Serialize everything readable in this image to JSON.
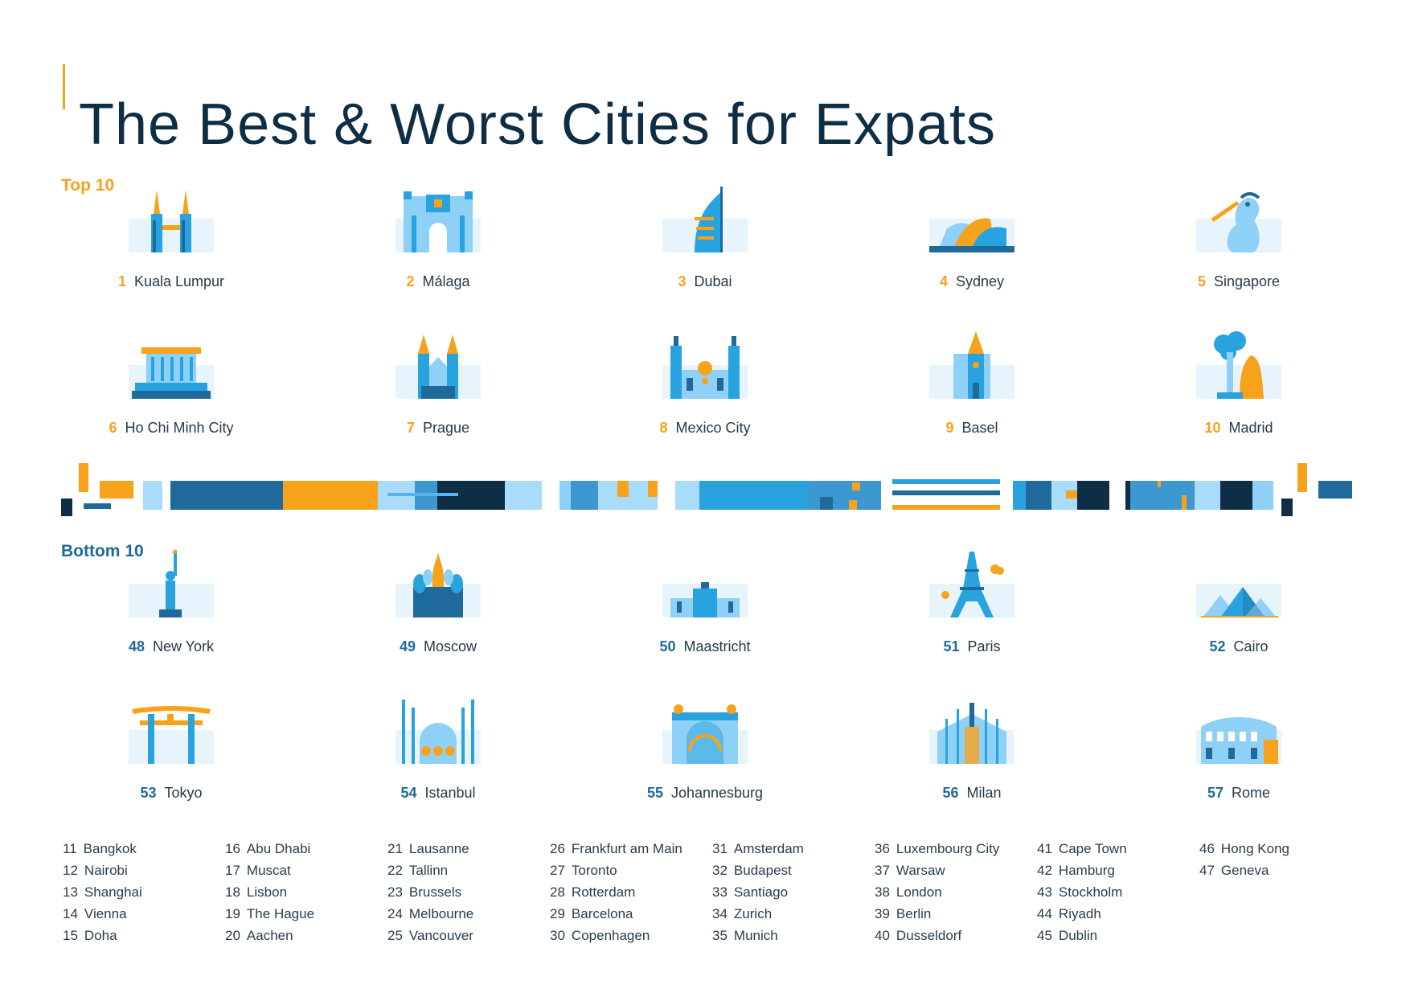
{
  "title": "The Best & Worst Cities for Expats",
  "sections": {
    "top_label": "Top 10",
    "bottom_label": "Bottom 10"
  },
  "colors": {
    "accent_orange": "#f7a21b",
    "blue_dark": "#1f6a9a",
    "blue_light": "#8fd0f7",
    "navy": "#0e2e45"
  },
  "top10": [
    {
      "rank": "1",
      "city": "Kuala Lumpur",
      "icon": "petronas-towers-icon"
    },
    {
      "rank": "2",
      "city": "Málaga",
      "icon": "alcazaba-gate-icon"
    },
    {
      "rank": "3",
      "city": "Dubai",
      "icon": "burj-al-arab-icon"
    },
    {
      "rank": "4",
      "city": "Sydney",
      "icon": "opera-house-icon"
    },
    {
      "rank": "5",
      "city": "Singapore",
      "icon": "merlion-icon"
    },
    {
      "rank": "6",
      "city": "Ho Chi Minh City",
      "icon": "mausoleum-icon"
    },
    {
      "rank": "7",
      "city": "Prague",
      "icon": "tyn-church-icon"
    },
    {
      "rank": "8",
      "city": "Mexico City",
      "icon": "cathedral-icon"
    },
    {
      "rank": "9",
      "city": "Basel",
      "icon": "minster-icon"
    },
    {
      "rank": "10",
      "city": "Madrid",
      "icon": "bear-and-tree-icon"
    }
  ],
  "bottom10": [
    {
      "rank": "48",
      "city": "New York",
      "icon": "statue-of-liberty-icon"
    },
    {
      "rank": "49",
      "city": "Moscow",
      "icon": "st-basils-icon"
    },
    {
      "rank": "50",
      "city": "Maastricht",
      "icon": "town-hall-icon"
    },
    {
      "rank": "51",
      "city": "Paris",
      "icon": "eiffel-tower-icon"
    },
    {
      "rank": "52",
      "city": "Cairo",
      "icon": "pyramids-icon"
    },
    {
      "rank": "53",
      "city": "Tokyo",
      "icon": "torii-gate-icon"
    },
    {
      "rank": "54",
      "city": "Istanbul",
      "icon": "blue-mosque-icon"
    },
    {
      "rank": "55",
      "city": "Johannesburg",
      "icon": "city-hall-icon"
    },
    {
      "rank": "56",
      "city": "Milan",
      "icon": "duomo-icon"
    },
    {
      "rank": "57",
      "city": "Rome",
      "icon": "colosseum-icon"
    }
  ],
  "rest_columns": [
    [
      [
        "11",
        "Bangkok"
      ],
      [
        "12",
        "Nairobi"
      ],
      [
        "13",
        "Shanghai"
      ],
      [
        "14",
        "Vienna"
      ],
      [
        "15",
        "Doha"
      ]
    ],
    [
      [
        "16",
        "Abu Dhabi"
      ],
      [
        "17",
        "Muscat"
      ],
      [
        "18",
        "Lisbon"
      ],
      [
        "19",
        "The Hague"
      ],
      [
        "20",
        "Aachen"
      ]
    ],
    [
      [
        "21",
        "Lausanne"
      ],
      [
        "22",
        "Tallinn"
      ],
      [
        "23",
        "Brussels"
      ],
      [
        "24",
        "Melbourne"
      ],
      [
        "25",
        "Vancouver"
      ]
    ],
    [
      [
        "26",
        "Frankfurt am Main"
      ],
      [
        "27",
        "Toronto"
      ],
      [
        "28",
        "Rotterdam"
      ],
      [
        "29",
        "Barcelona"
      ],
      [
        "30",
        "Copenhagen"
      ]
    ],
    [
      [
        "31",
        "Amsterdam"
      ],
      [
        "32",
        "Budapest"
      ],
      [
        "33",
        "Santiago"
      ],
      [
        "34",
        "Zurich"
      ],
      [
        "35",
        "Munich"
      ]
    ],
    [
      [
        "36",
        "Luxembourg City"
      ],
      [
        "37",
        "Warsaw"
      ],
      [
        "38",
        "London"
      ],
      [
        "39",
        "Berlin"
      ],
      [
        "40",
        "Dusseldorf"
      ]
    ],
    [
      [
        "41",
        "Cape Town"
      ],
      [
        "42",
        "Hamburg"
      ],
      [
        "43",
        "Stockholm"
      ],
      [
        "44",
        "Riyadh"
      ],
      [
        "45",
        "Dublin"
      ]
    ],
    [
      [
        "46",
        "Hong Kong"
      ],
      [
        "47",
        "Geneva"
      ]
    ]
  ]
}
